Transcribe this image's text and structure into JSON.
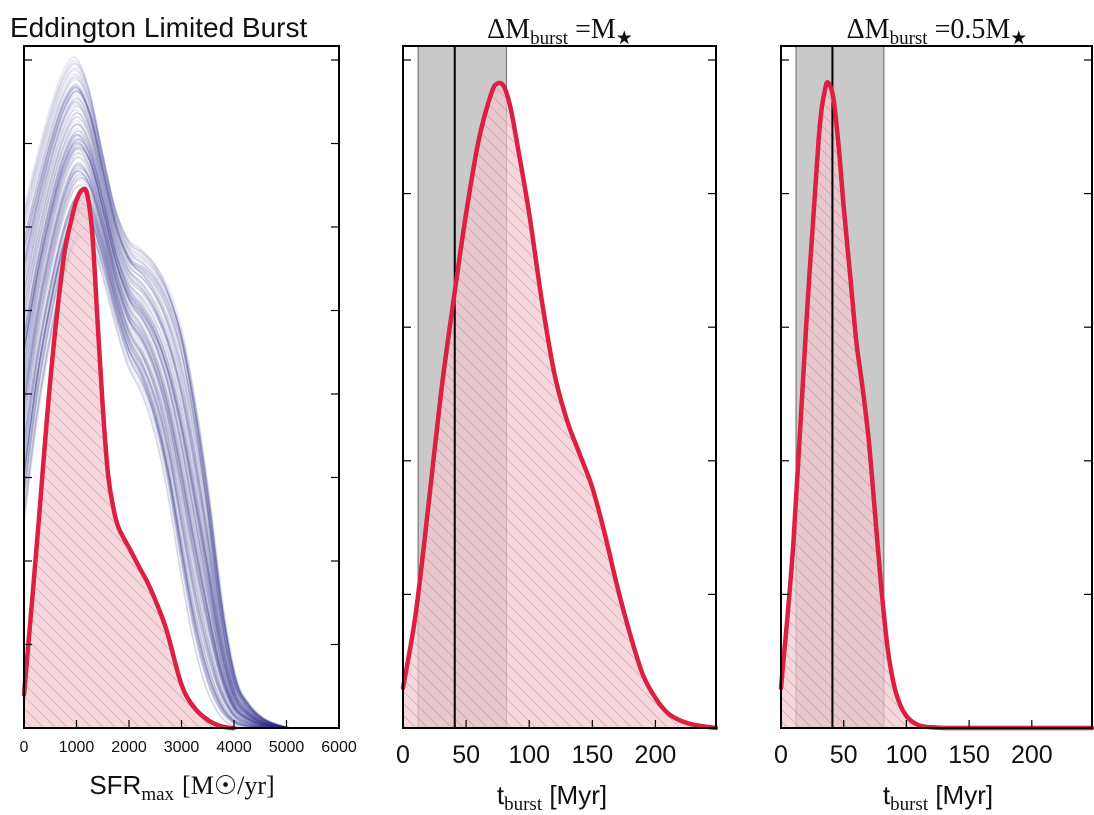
{
  "chart_data": [
    {
      "type": "area",
      "title": "Eddington Limited Burst",
      "xlabel_main": "SFR",
      "xlabel_sub": "max",
      "xlabel_unit": "[M☉/yr]",
      "xlim": [
        0,
        6000
      ],
      "ylim": [
        0,
        1
      ],
      "xticks": [
        "0",
        "1000",
        "2000",
        "3000",
        "4000",
        "5000",
        "6000"
      ],
      "colors": {
        "curve": "#dc2043",
        "fill": "#f4c6cf",
        "band": "#2b3186"
      },
      "kde": {
        "x": [
          0,
          250,
          500,
          750,
          900,
          1000,
          1100,
          1200,
          1300,
          1400,
          1500,
          1600,
          1700,
          1800,
          2000,
          2200,
          2400,
          2700,
          3000,
          3250,
          3500,
          3700,
          3850,
          3950,
          4000
        ],
        "y": [
          0.05,
          0.28,
          0.52,
          0.7,
          0.76,
          0.79,
          0.805,
          0.8,
          0.74,
          0.61,
          0.48,
          0.38,
          0.33,
          0.3,
          0.27,
          0.24,
          0.21,
          0.15,
          0.065,
          0.03,
          0.012,
          0.004,
          0.001,
          0.0,
          0.0
        ]
      },
      "band_upper": {
        "x": [
          0,
          200,
          400,
          600,
          800,
          1000,
          1200,
          1400,
          1600,
          1800,
          2000,
          2200,
          2400,
          2600,
          2800,
          3000,
          3200,
          3400,
          3600,
          3800,
          4000,
          4300,
          4600,
          5000
        ],
        "y": [
          0.78,
          0.84,
          0.9,
          0.95,
          0.99,
          1.0,
          0.97,
          0.9,
          0.82,
          0.76,
          0.73,
          0.72,
          0.71,
          0.69,
          0.66,
          0.61,
          0.53,
          0.43,
          0.3,
          0.16,
          0.08,
          0.03,
          0.01,
          0.0
        ]
      },
      "band_lower": {
        "x": [
          0,
          200,
          400,
          600,
          800,
          1000,
          1200,
          1400,
          1600,
          1800,
          2000,
          2200,
          2400,
          2600,
          2800,
          3000,
          3200,
          3400,
          3600,
          3800,
          4000,
          4300,
          4600,
          5000
        ],
        "y": [
          0.32,
          0.45,
          0.55,
          0.63,
          0.7,
          0.74,
          0.75,
          0.72,
          0.66,
          0.6,
          0.55,
          0.52,
          0.48,
          0.42,
          0.34,
          0.24,
          0.15,
          0.08,
          0.04,
          0.015,
          0.005,
          0.0,
          0.0,
          0.0
        ]
      }
    },
    {
      "type": "area",
      "title": "ΔM",
      "title_sub": "burst",
      "title_eq": " =M",
      "title_star": "★",
      "xlabel_main": "t",
      "xlabel_sub": "burst",
      "xlabel_unit": " [Myr]",
      "xlim": [
        0,
        248
      ],
      "ylim": [
        0,
        1
      ],
      "xticks": [
        0,
        50,
        100,
        150,
        200
      ],
      "band": [
        12,
        82
      ],
      "vline": 41,
      "colors": {
        "curve": "#dc2043",
        "fill": "#f4c6cf",
        "band_fill": "#a8a8a8"
      },
      "kde": {
        "x": [
          0,
          10,
          20,
          30,
          40,
          50,
          60,
          70,
          75,
          80,
          85,
          90,
          100,
          110,
          120,
          130,
          140,
          150,
          160,
          170,
          180,
          190,
          200,
          210,
          220,
          230,
          240,
          248
        ],
        "y": [
          0.06,
          0.17,
          0.33,
          0.5,
          0.64,
          0.77,
          0.88,
          0.95,
          0.965,
          0.96,
          0.93,
          0.88,
          0.77,
          0.64,
          0.53,
          0.46,
          0.41,
          0.36,
          0.29,
          0.21,
          0.14,
          0.08,
          0.045,
          0.022,
          0.011,
          0.005,
          0.002,
          0.0
        ]
      }
    },
    {
      "type": "area",
      "title": "ΔM",
      "title_sub": "burst",
      "title_eq": " =0.5M",
      "title_star": "★",
      "xlabel_main": "t",
      "xlabel_sub": "burst",
      "xlabel_unit": " [Myr]",
      "xlim": [
        0,
        248
      ],
      "ylim": [
        0,
        1
      ],
      "xticks": [
        0,
        50,
        100,
        150,
        200
      ],
      "band": [
        12,
        82
      ],
      "vline": 41,
      "colors": {
        "curve": "#dc2043",
        "fill": "#f4c6cf",
        "band_fill": "#a8a8a8"
      },
      "kde": {
        "x": [
          0,
          10,
          20,
          30,
          35,
          38,
          42,
          46,
          50,
          55,
          60,
          65,
          70,
          75,
          80,
          85,
          90,
          95,
          100,
          105,
          110,
          115,
          120,
          130,
          140,
          160,
          200,
          248
        ],
        "y": [
          0.06,
          0.28,
          0.6,
          0.88,
          0.955,
          0.965,
          0.94,
          0.87,
          0.78,
          0.68,
          0.58,
          0.51,
          0.43,
          0.32,
          0.21,
          0.12,
          0.065,
          0.035,
          0.018,
          0.009,
          0.004,
          0.002,
          0.001,
          0.0,
          0.0,
          0.0,
          0.0,
          0.0
        ]
      }
    }
  ]
}
